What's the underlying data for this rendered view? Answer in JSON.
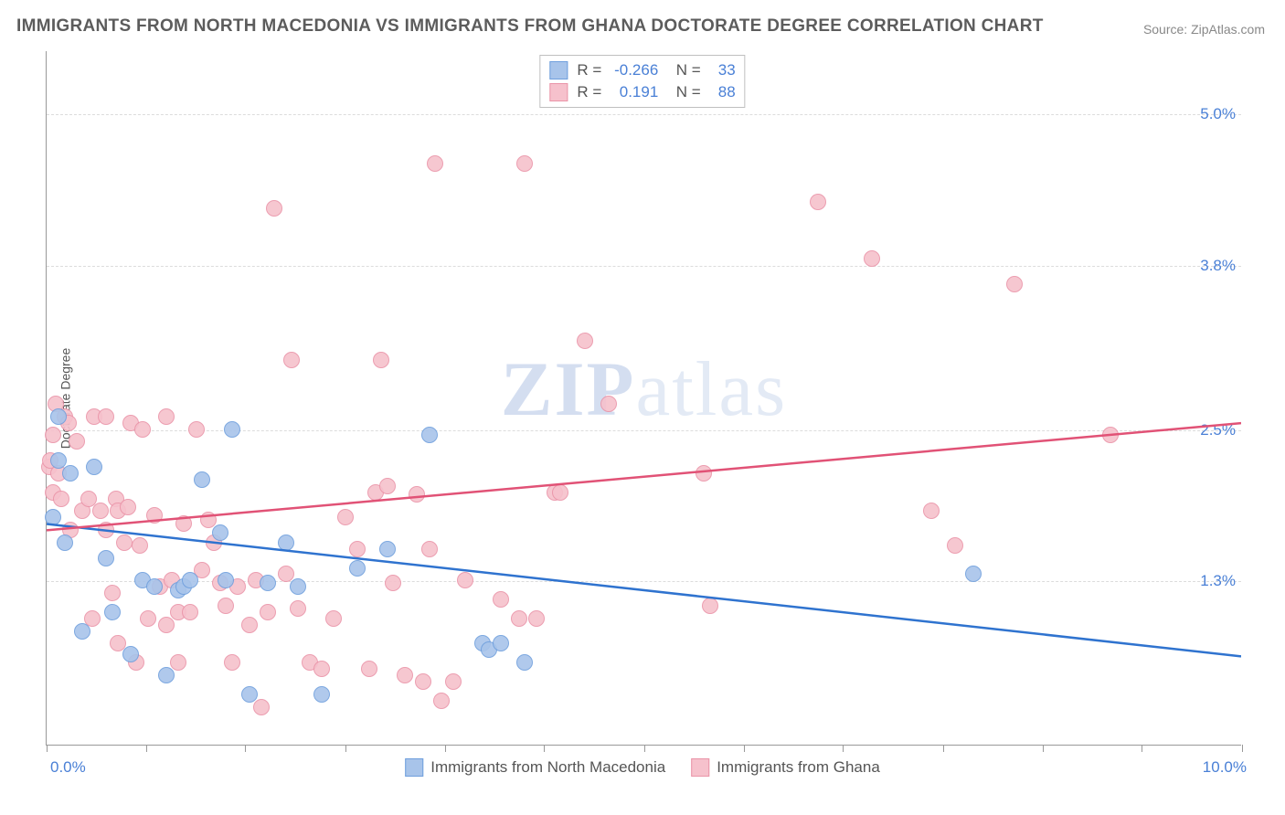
{
  "title": "IMMIGRANTS FROM NORTH MACEDONIA VS IMMIGRANTS FROM GHANA DOCTORATE DEGREE CORRELATION CHART",
  "source": "Source: ZipAtlas.com",
  "ylabel": "Doctorate Degree",
  "watermark_a": "ZIP",
  "watermark_b": "atlas",
  "chart": {
    "type": "scatter",
    "background_color": "#ffffff",
    "grid_color": "#dcdcdc",
    "axis_color": "#999999",
    "xlim": [
      0.0,
      10.0
    ],
    "ylim": [
      0.0,
      5.5
    ],
    "x_ticks_major": [
      0.0,
      10.0
    ],
    "x_tick_labels": [
      "0.0%",
      "10.0%"
    ],
    "y_ticks": [
      1.3,
      2.5,
      3.8,
      5.0
    ],
    "y_tick_labels": [
      "1.3%",
      "2.5%",
      "3.8%",
      "5.0%"
    ],
    "x_minor_ticks": [
      0.0,
      0.83,
      1.66,
      2.5,
      3.33,
      4.16,
      5.0,
      5.83,
      6.66,
      7.5,
      8.33,
      9.16,
      10.0
    ],
    "marker_size": 18,
    "marker_opacity_fill": 0.35,
    "marker_border_width": 1.5,
    "trend_line_width": 2.5
  },
  "series": {
    "blue": {
      "label": "Immigrants from North Macedonia",
      "R": "-0.266",
      "N": "33",
      "fill_color": "#a8c4ea",
      "border_color": "#6f9fdd",
      "line_color": "#2f73cf",
      "trend": {
        "x1": 0.0,
        "y1": 1.75,
        "x2": 10.0,
        "y2": 0.7
      },
      "points": [
        [
          0.05,
          1.8
        ],
        [
          0.1,
          2.25
        ],
        [
          0.1,
          2.6
        ],
        [
          0.15,
          1.6
        ],
        [
          0.2,
          2.15
        ],
        [
          0.3,
          0.9
        ],
        [
          0.4,
          2.2
        ],
        [
          0.5,
          1.48
        ],
        [
          0.55,
          1.05
        ],
        [
          0.7,
          0.72
        ],
        [
          0.8,
          1.3
        ],
        [
          0.9,
          1.25
        ],
        [
          1.0,
          0.55
        ],
        [
          1.1,
          1.22
        ],
        [
          1.15,
          1.25
        ],
        [
          1.2,
          1.3
        ],
        [
          1.3,
          2.1
        ],
        [
          1.45,
          1.68
        ],
        [
          1.5,
          1.3
        ],
        [
          1.55,
          2.5
        ],
        [
          1.7,
          0.4
        ],
        [
          1.85,
          1.28
        ],
        [
          2.0,
          1.6
        ],
        [
          2.1,
          1.25
        ],
        [
          2.3,
          0.4
        ],
        [
          2.6,
          1.4
        ],
        [
          2.85,
          1.55
        ],
        [
          3.2,
          2.45
        ],
        [
          3.65,
          0.8
        ],
        [
          3.7,
          0.75
        ],
        [
          3.8,
          0.8
        ],
        [
          4.0,
          0.65
        ],
        [
          7.75,
          1.35
        ]
      ]
    },
    "pink": {
      "label": "Immigrants from Ghana",
      "R": "0.191",
      "N": "88",
      "fill_color": "#f6c1cc",
      "border_color": "#ea94a8",
      "line_color": "#e15276",
      "trend": {
        "x1": 0.0,
        "y1": 1.7,
        "x2": 10.0,
        "y2": 2.55
      },
      "points": [
        [
          0.02,
          2.2
        ],
        [
          0.03,
          2.25
        ],
        [
          0.05,
          2.0
        ],
        [
          0.05,
          2.45
        ],
        [
          0.08,
          2.7
        ],
        [
          0.1,
          2.15
        ],
        [
          0.12,
          1.95
        ],
        [
          0.15,
          2.6
        ],
        [
          0.18,
          2.55
        ],
        [
          0.2,
          1.7
        ],
        [
          0.25,
          2.4
        ],
        [
          0.3,
          1.85
        ],
        [
          0.35,
          1.95
        ],
        [
          0.38,
          1.0
        ],
        [
          0.4,
          2.6
        ],
        [
          0.45,
          1.85
        ],
        [
          0.5,
          1.7
        ],
        [
          0.5,
          2.6
        ],
        [
          0.55,
          1.2
        ],
        [
          0.58,
          1.95
        ],
        [
          0.6,
          1.85
        ],
        [
          0.6,
          0.8
        ],
        [
          0.65,
          1.6
        ],
        [
          0.68,
          1.88
        ],
        [
          0.7,
          2.55
        ],
        [
          0.75,
          0.65
        ],
        [
          0.78,
          1.58
        ],
        [
          0.8,
          2.5
        ],
        [
          0.85,
          1.0
        ],
        [
          0.9,
          1.82
        ],
        [
          0.95,
          1.25
        ],
        [
          1.0,
          2.6
        ],
        [
          1.0,
          0.95
        ],
        [
          1.05,
          1.3
        ],
        [
          1.1,
          1.05
        ],
        [
          1.1,
          0.65
        ],
        [
          1.15,
          1.75
        ],
        [
          1.2,
          1.05
        ],
        [
          1.25,
          2.5
        ],
        [
          1.3,
          1.38
        ],
        [
          1.35,
          1.78
        ],
        [
          1.4,
          1.6
        ],
        [
          1.45,
          1.28
        ],
        [
          1.5,
          1.1
        ],
        [
          1.55,
          0.65
        ],
        [
          1.6,
          1.25
        ],
        [
          1.7,
          0.95
        ],
        [
          1.75,
          1.3
        ],
        [
          1.8,
          0.3
        ],
        [
          1.85,
          1.05
        ],
        [
          1.9,
          4.25
        ],
        [
          2.0,
          1.35
        ],
        [
          2.05,
          3.05
        ],
        [
          2.1,
          1.08
        ],
        [
          2.2,
          0.65
        ],
        [
          2.3,
          0.6
        ],
        [
          2.4,
          1.0
        ],
        [
          2.5,
          1.8
        ],
        [
          2.6,
          1.55
        ],
        [
          2.7,
          0.6
        ],
        [
          2.75,
          2.0
        ],
        [
          2.8,
          3.05
        ],
        [
          2.85,
          2.05
        ],
        [
          2.9,
          1.28
        ],
        [
          3.0,
          0.55
        ],
        [
          3.1,
          1.98
        ],
        [
          3.15,
          0.5
        ],
        [
          3.2,
          1.55
        ],
        [
          3.25,
          4.6
        ],
        [
          3.3,
          0.35
        ],
        [
          3.4,
          0.5
        ],
        [
          3.5,
          1.3
        ],
        [
          3.8,
          1.15
        ],
        [
          3.95,
          1.0
        ],
        [
          4.0,
          4.6
        ],
        [
          4.1,
          1.0
        ],
        [
          4.25,
          2.0
        ],
        [
          4.3,
          2.0
        ],
        [
          4.5,
          3.2
        ],
        [
          4.7,
          2.7
        ],
        [
          5.5,
          2.15
        ],
        [
          5.55,
          1.1
        ],
        [
          6.45,
          4.3
        ],
        [
          6.9,
          3.85
        ],
        [
          7.4,
          1.85
        ],
        [
          7.6,
          1.58
        ],
        [
          8.1,
          3.65
        ],
        [
          8.9,
          2.45
        ]
      ]
    }
  }
}
